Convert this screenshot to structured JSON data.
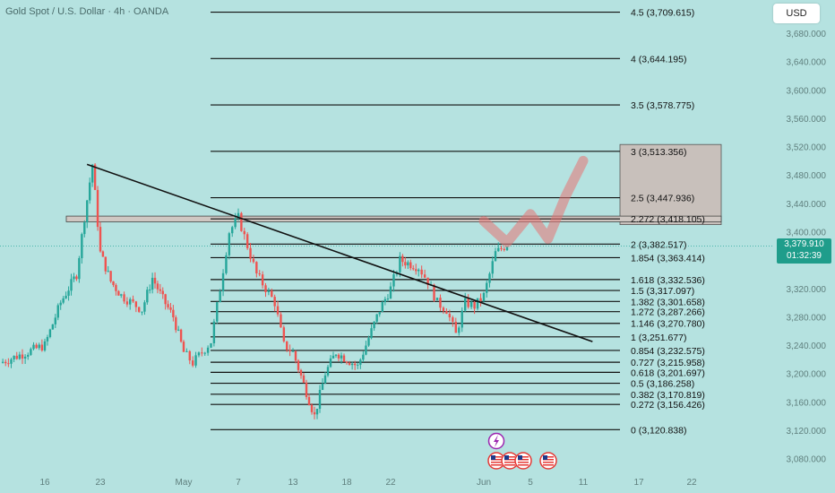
{
  "header": {
    "title": "Gold Spot / U.S. Dollar · 4h · OANDA",
    "currency_button": "USD"
  },
  "price_badge": {
    "price": "3,379.910",
    "countdown": "01:32:39"
  },
  "colors": {
    "background": "#b5e2e0",
    "up": "#26a69a",
    "down": "#ef5350",
    "projection": "#e57373",
    "target_box": "#c8c0bb"
  },
  "chart_data": {
    "type": "candlestick",
    "title": "Gold Spot / U.S. Dollar · 4h · OANDA",
    "y_axis": {
      "ticks": [
        "3,680.000",
        "3,640.000",
        "3,600.000",
        "3,560.000",
        "3,520.000",
        "3,480.000",
        "3,440.000",
        "3,400.000",
        "3,320.000",
        "3,280.000",
        "3,240.000",
        "3,200.000",
        "3,160.000",
        "3,120.000",
        "3,080.000"
      ]
    },
    "x_axis": {
      "ticks": [
        "16",
        "23",
        "May",
        "7",
        "13",
        "18",
        "22",
        "Jun",
        "5",
        "11",
        "17",
        "22"
      ]
    },
    "fib_levels": [
      {
        "ratio": "4.5",
        "price": 3709.615,
        "label": "4.5 (3,709.615)"
      },
      {
        "ratio": "4",
        "price": 3644.195,
        "label": "4 (3,644.195)"
      },
      {
        "ratio": "3.5",
        "price": 3578.775,
        "label": "3.5 (3,578.775)"
      },
      {
        "ratio": "3",
        "price": 3513.356,
        "label": "3 (3,513.356)"
      },
      {
        "ratio": "2.5",
        "price": 3447.936,
        "label": "2.5 (3,447.936)"
      },
      {
        "ratio": "2.272",
        "price": 3418.105,
        "label": "2.272 (3,418.105)"
      },
      {
        "ratio": "2",
        "price": 3382.517,
        "label": "2 (3,382.517)"
      },
      {
        "ratio": "1.854",
        "price": 3363.414,
        "label": "1.854 (3,363.414)"
      },
      {
        "ratio": "1.618",
        "price": 3332.536,
        "label": "1.618 (3,332.536)"
      },
      {
        "ratio": "1.5",
        "price": 3317.097,
        "label": "1.5 (3,317.097)"
      },
      {
        "ratio": "1.382",
        "price": 3301.658,
        "label": "1.382 (3,301.658)"
      },
      {
        "ratio": "1.272",
        "price": 3287.266,
        "label": "1.272 (3,287.266)"
      },
      {
        "ratio": "1.146",
        "price": 3270.78,
        "label": "1.146 (3,270.780)"
      },
      {
        "ratio": "1",
        "price": 3251.677,
        "label": "1 (3,251.677)"
      },
      {
        "ratio": "0.854",
        "price": 3232.575,
        "label": "0.854 (3,232.575)"
      },
      {
        "ratio": "0.727",
        "price": 3215.958,
        "label": "0.727 (3,215.958)"
      },
      {
        "ratio": "0.618",
        "price": 3201.697,
        "label": "0.618 (3,201.697)"
      },
      {
        "ratio": "0.5",
        "price": 3186.258,
        "label": "0.5 (3,186.258)"
      },
      {
        "ratio": "0.382",
        "price": 3170.819,
        "label": "0.382 (3,170.819)"
      },
      {
        "ratio": "0.272",
        "price": 3156.426,
        "label": "0.272 (3,156.426)"
      },
      {
        "ratio": "0",
        "price": 3120.838,
        "label": "0 (3,120.838)"
      }
    ],
    "current_price": 3379.91,
    "price_path": [
      [
        "Apr 14",
        3215
      ],
      [
        "Apr 16",
        3240
      ],
      [
        "Apr 18",
        3300
      ],
      [
        "Apr 20",
        3340
      ],
      [
        "Apr 21",
        3420
      ],
      [
        "Apr 22",
        3495
      ],
      [
        "Apr 23",
        3370
      ],
      [
        "Apr 24",
        3330
      ],
      [
        "Apr 25",
        3310
      ],
      [
        "Apr 27",
        3290
      ],
      [
        "Apr 28",
        3335
      ],
      [
        "Apr 29",
        3305
      ],
      [
        "Apr 30",
        3280
      ],
      [
        "May 1",
        3230
      ],
      [
        "May 2",
        3215
      ],
      [
        "May 4",
        3245
      ],
      [
        "May 5",
        3320
      ],
      [
        "May 6",
        3400
      ],
      [
        "May 7",
        3420
      ],
      [
        "May 8",
        3380
      ],
      [
        "May 9",
        3340
      ],
      [
        "May 11",
        3300
      ],
      [
        "May 12",
        3240
      ],
      [
        "May 13",
        3230
      ],
      [
        "May 14",
        3185
      ],
      [
        "May 15",
        3140
      ],
      [
        "May 16",
        3200
      ],
      [
        "May 17",
        3230
      ],
      [
        "May 18",
        3220
      ],
      [
        "May 19",
        3210
      ],
      [
        "May 20",
        3250
      ],
      [
        "May 21",
        3290
      ],
      [
        "May 22",
        3320
      ],
      [
        "May 23",
        3360
      ],
      [
        "May 25",
        3350
      ],
      [
        "May 26",
        3330
      ],
      [
        "May 27",
        3300
      ],
      [
        "May 28",
        3290
      ],
      [
        "May 29",
        3255
      ],
      [
        "May 30",
        3300
      ],
      [
        "May 31",
        3295
      ],
      [
        "Jun 1",
        3310
      ],
      [
        "Jun 2",
        3370
      ],
      [
        "Jun 3",
        3382
      ]
    ],
    "trendline": {
      "from": [
        "Apr 22",
        3495
      ],
      "to": [
        "Jun 12",
        3245
      ]
    },
    "resistance_zone": {
      "from": 3414,
      "to": 3422,
      "label": ""
    },
    "target_box": {
      "from_price": 3410,
      "to_price": 3523
    },
    "projection": [
      [
        "Jun 1",
        3415
      ],
      [
        "Jun 3",
        3385
      ],
      [
        "Jun 5",
        3425
      ],
      [
        "Jun 7",
        3390
      ],
      [
        "Jun 9",
        3450
      ],
      [
        "Jun 11",
        3500
      ]
    ],
    "events": [
      {
        "date": "Jun 2",
        "icon": "lightning-event-icon"
      },
      {
        "date": "Jun 2",
        "icon": "us-flag-event-icon"
      },
      {
        "date": "Jun 3",
        "icon": "us-flag-event-icon"
      },
      {
        "date": "Jun 4",
        "icon": "us-flag-event-icon"
      },
      {
        "date": "Jun 5",
        "icon": "us-flag-event-icon"
      }
    ]
  }
}
